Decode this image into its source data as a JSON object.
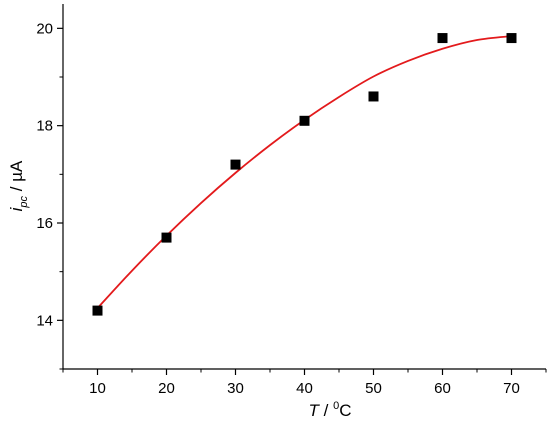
{
  "chart_data": {
    "type": "scatter",
    "title": "",
    "xlabel": {
      "var": "T",
      "sep": " / ",
      "sup": "0",
      "unit": "C"
    },
    "ylabel": {
      "var": "i",
      "sub": "pc",
      "sep": " / ",
      "unit": "µA"
    },
    "xlim": [
      5,
      75
    ],
    "ylim": [
      13,
      20.5
    ],
    "xticks": [
      10,
      20,
      30,
      40,
      50,
      60,
      70
    ],
    "xtick_labels": [
      "10",
      "20",
      "30",
      "40",
      "50",
      "60",
      "70"
    ],
    "yticks": [
      14,
      16,
      18,
      20
    ],
    "ytick_labels": [
      "14",
      "16",
      "18",
      "20"
    ],
    "grid": false,
    "legend": "none",
    "series": [
      {
        "kind": "points",
        "marker": "square",
        "color": "#000000",
        "x": [
          10,
          20,
          30,
          40,
          50,
          60,
          70
        ],
        "y": [
          14.2,
          15.7,
          17.2,
          18.1,
          18.6,
          19.8,
          19.8
        ]
      },
      {
        "kind": "fit-curve",
        "color": "#e31a1c",
        "x": [
          10,
          15,
          20,
          25,
          30,
          35,
          40,
          45,
          50,
          55,
          60,
          65,
          70
        ],
        "y": [
          14.25,
          15.02,
          15.74,
          16.41,
          17.03,
          17.6,
          18.12,
          18.59,
          19.01,
          19.33,
          19.58,
          19.76,
          19.84
        ]
      }
    ],
    "colors": {
      "axis": "#000000",
      "curve": "#e31a1c",
      "marker": "#000000"
    }
  }
}
